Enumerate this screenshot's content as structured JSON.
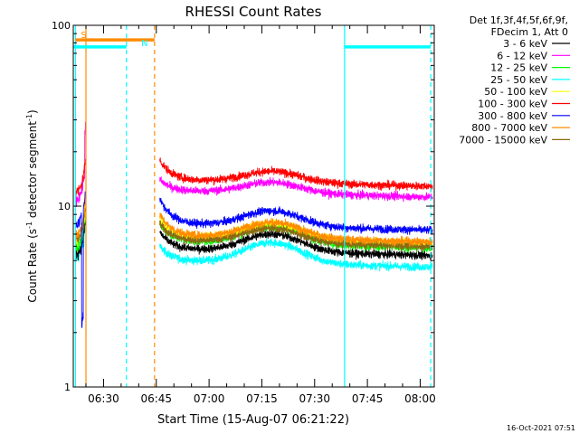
{
  "chart_data": {
    "type": "line",
    "title": "RHESSI Count Rates",
    "xlabel": "Start Time (15-Aug-07 06:21:22)",
    "ylabel_main": "Count Rate (s",
    "ylabel_sup": "-1",
    "ylabel_tail": " detector segment",
    "ylabel_sup2": "-1",
    "ylabel_close": ")",
    "y_scale": "log",
    "ylim": [
      1,
      100
    ],
    "y_ticks": [
      {
        "value": 1,
        "label": "1"
      },
      {
        "value": 10,
        "label": "10"
      },
      {
        "value": 100,
        "label": "100"
      }
    ],
    "x_range_min": [
      381.4,
      484
    ],
    "x_ticks": [
      {
        "value": 390,
        "label": "06:30"
      },
      {
        "value": 405,
        "label": "06:45"
      },
      {
        "value": 420,
        "label": "07:00"
      },
      {
        "value": 435,
        "label": "07:15"
      },
      {
        "value": 450,
        "label": "07:30"
      },
      {
        "value": 465,
        "label": "07:45"
      },
      {
        "value": 480,
        "label": "08:00"
      }
    ],
    "legend_header": [
      "Det 1f,3f,4f,5f,6f,9f,",
      "FDecim 1, Att 0"
    ],
    "legend_placement": "top-right, outside plot",
    "timestamp": "16-Oct-2021 07:51",
    "series": [
      {
        "name": "3 - 6 keV",
        "color": "#000000",
        "base": 5.8,
        "bump": 1.25,
        "early": 5.5,
        "start": 7.2
      },
      {
        "name": "6 - 12 keV",
        "color": "#ff00ff",
        "base": 12.2,
        "bump": 1.15,
        "early": 11.0,
        "start": 14.0
      },
      {
        "name": "12 - 25 keV",
        "color": "#00ff00",
        "base": 6.4,
        "bump": 1.25,
        "early": 6.0,
        "start": 8.0
      },
      {
        "name": "25 - 50 keV",
        "color": "#00ffff",
        "base": 5.0,
        "bump": 1.3,
        "early": 5.2,
        "start": 6.0
      },
      {
        "name": "50 - 100 keV",
        "color": "#ffff00",
        "base": 6.8,
        "bump": 1.22,
        "early": 6.5,
        "start": 8.5
      },
      {
        "name": "100 - 300 keV",
        "color": "#ff0000",
        "base": 14.0,
        "bump": 1.15,
        "early": 12.0,
        "start": 18.0
      },
      {
        "name": "300 - 800 keV",
        "color": "#0000ff",
        "base": 8.0,
        "bump": 1.22,
        "early": 8.0,
        "start": 11.0
      },
      {
        "name": "800 - 7000 keV",
        "color": "#ff8c00",
        "base": 6.9,
        "bump": 1.22,
        "early": 7.0,
        "start": 9.0
      },
      {
        "name": "7000 - 15000 keV",
        "color": "#8b6914",
        "base": 6.5,
        "bump": 1.2,
        "early": 6.6,
        "start": 8.0
      }
    ],
    "event_flags": [
      {
        "label": "S",
        "color": "#ff8c00",
        "x_start": 382,
        "x_end": 404.5,
        "y_value": 83
      },
      {
        "label": "N",
        "color": "#00ffff",
        "x_start": 381.4,
        "x_end": 396.5,
        "y_value": 76
      },
      {
        "label": "",
        "color": "#00ffff",
        "x_start": 458.5,
        "x_end": 483,
        "y_value": 76
      }
    ],
    "vertical_lines": [
      {
        "x": 382.0,
        "color": "#00ffff",
        "style": "solid"
      },
      {
        "x": 385.0,
        "color": "#ff8c00",
        "style": "solid"
      },
      {
        "x": 396.5,
        "color": "#00ffff",
        "style": "dashed"
      },
      {
        "x": 404.5,
        "color": "#ff8c00",
        "style": "dashed"
      },
      {
        "x": 458.5,
        "color": "#00ffff",
        "style": "solid"
      },
      {
        "x": 483.0,
        "color": "#00ffff",
        "style": "dashed"
      }
    ],
    "data_windows": {
      "early": [
        382.0,
        385.0
      ],
      "main": [
        406.0,
        483.5
      ]
    }
  }
}
